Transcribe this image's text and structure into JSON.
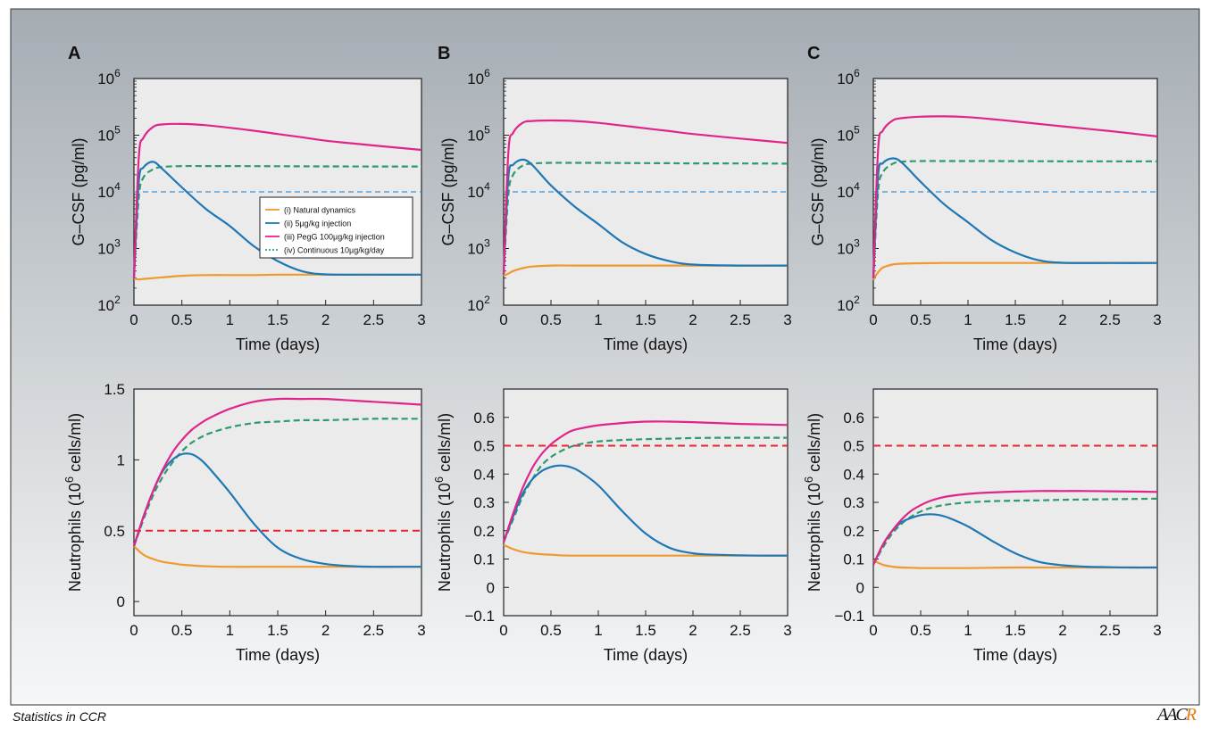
{
  "footer": {
    "journal": "Statistics in CCR",
    "logo": "AACR"
  },
  "legend": {
    "items": [
      {
        "label": "(i) Natural dynamics",
        "color": "#f0992e",
        "style": "solid"
      },
      {
        "label": "(ii) 5µg/kg injection",
        "color": "#1f78b4",
        "style": "solid"
      },
      {
        "label": "(iii) PegG 100µg/kg injection",
        "color": "#e0258a",
        "style": "solid"
      },
      {
        "label": "(iv) Continuous 10µg/kg/day",
        "color": "#2e9a6e",
        "style": "dashed"
      }
    ]
  },
  "colors": {
    "natural": "#f0992e",
    "injection": "#1f78b4",
    "pegg": "#e0258a",
    "continuous": "#2e9a6e",
    "thr_gcsf": "#3a8fd6",
    "thr_neut": "#e8262e"
  },
  "chart_data": [
    {
      "panel": "A",
      "type": "line",
      "xlabel": "Time (days)",
      "ylabel": "G–CSF (pg/ml)",
      "yscale": "log",
      "xlim": [
        0,
        3
      ],
      "ylim": [
        100,
        1000000
      ],
      "xticks": [
        "0",
        "0.5",
        "1",
        "1.5",
        "2",
        "2.5",
        "3"
      ],
      "yticks": [
        {
          "base": "10",
          "exp": "2"
        },
        {
          "base": "10",
          "exp": "3"
        },
        {
          "base": "10",
          "exp": "4"
        },
        {
          "base": "10",
          "exp": "5"
        },
        {
          "base": "10",
          "exp": "6"
        }
      ],
      "x": [
        0,
        0.05,
        0.1,
        0.2,
        0.3,
        0.5,
        0.75,
        1,
        1.25,
        1.5,
        1.75,
        2,
        2.5,
        3
      ],
      "series": [
        {
          "name": "(i) Natural dynamics",
          "key": "natural",
          "values": [
            290,
            285,
            290,
            300,
            310,
            330,
            340,
            340,
            340,
            345,
            345,
            345,
            345,
            345
          ]
        },
        {
          "name": "(ii) 5µg/kg injection",
          "key": "injection",
          "values": [
            300,
            15000,
            27000,
            34000,
            25000,
            12000,
            5000,
            2500,
            1100,
            600,
            400,
            350,
            345,
            345
          ]
        },
        {
          "name": "(iii) PegG 100µg/kg injection",
          "key": "pegg",
          "values": [
            300,
            40000,
            90000,
            140000,
            155000,
            158000,
            150000,
            135000,
            120000,
            105000,
            92000,
            80000,
            66000,
            55000
          ]
        },
        {
          "name": "(iv) Continuous 10µg/kg/day",
          "key": "continuous",
          "values": [
            300,
            8000,
            18000,
            25000,
            27500,
            28500,
            28500,
            28500,
            28400,
            28300,
            28200,
            28100,
            28000,
            28000
          ]
        }
      ],
      "threshold": 10000
    },
    {
      "panel": "B",
      "type": "line",
      "xlabel": "Time (days)",
      "ylabel": "G–CSF (pg/ml)",
      "yscale": "log",
      "xlim": [
        0,
        3
      ],
      "ylim": [
        100,
        1000000
      ],
      "xticks": [
        "0",
        "0.5",
        "1",
        "1.5",
        "2",
        "2.5",
        "3"
      ],
      "yticks": [
        {
          "base": "10",
          "exp": "2"
        },
        {
          "base": "10",
          "exp": "3"
        },
        {
          "base": "10",
          "exp": "4"
        },
        {
          "base": "10",
          "exp": "5"
        },
        {
          "base": "10",
          "exp": "6"
        }
      ],
      "x": [
        0,
        0.05,
        0.1,
        0.2,
        0.3,
        0.5,
        0.75,
        1,
        1.25,
        1.5,
        1.75,
        2,
        2.5,
        3
      ],
      "series": [
        {
          "name": "(i) Natural dynamics",
          "key": "natural",
          "values": [
            330,
            360,
            400,
            450,
            480,
            500,
            500,
            500,
            500,
            500,
            500,
            500,
            500,
            500
          ]
        },
        {
          "name": "(ii) 5µg/kg injection",
          "key": "injection",
          "values": [
            350,
            18000,
            30000,
            37000,
            30000,
            13000,
            5500,
            2700,
            1300,
            800,
            600,
            520,
            500,
            500
          ]
        },
        {
          "name": "(iii) PegG 100µg/kg injection",
          "key": "pegg",
          "values": [
            350,
            50000,
            110000,
            165000,
            178000,
            182000,
            178000,
            165000,
            148000,
            132000,
            118000,
            105000,
            87000,
            73000
          ]
        },
        {
          "name": "(iv) Continuous 10µg/kg/day",
          "key": "continuous",
          "values": [
            350,
            9000,
            20000,
            29000,
            31500,
            32500,
            32500,
            32500,
            32300,
            32100,
            32000,
            31800,
            31700,
            31500
          ]
        }
      ],
      "threshold": 10000
    },
    {
      "panel": "C",
      "type": "line",
      "xlabel": "Time (days)",
      "ylabel": "G–CSF (pg/ml)",
      "yscale": "log",
      "xlim": [
        0,
        3
      ],
      "ylim": [
        100,
        1000000
      ],
      "xticks": [
        "0",
        "0.5",
        "1",
        "1.5",
        "2",
        "2.5",
        "3"
      ],
      "yticks": [
        {
          "base": "10",
          "exp": "2"
        },
        {
          "base": "10",
          "exp": "3"
        },
        {
          "base": "10",
          "exp": "4"
        },
        {
          "base": "10",
          "exp": "5"
        },
        {
          "base": "10",
          "exp": "6"
        }
      ],
      "x": [
        0,
        0.05,
        0.1,
        0.2,
        0.3,
        0.5,
        0.75,
        1,
        1.25,
        1.5,
        1.75,
        2,
        2.5,
        3
      ],
      "series": [
        {
          "name": "(i) Natural dynamics",
          "key": "natural",
          "values": [
            280,
            380,
            460,
            520,
            540,
            550,
            555,
            555,
            555,
            555,
            555,
            555,
            555,
            555
          ]
        },
        {
          "name": "(ii) 5µg/kg injection",
          "key": "injection",
          "values": [
            300,
            19000,
            32000,
            39000,
            33000,
            15000,
            6000,
            2900,
            1400,
            850,
            620,
            560,
            555,
            555
          ]
        },
        {
          "name": "(iii) PegG 100µg/kg injection",
          "key": "pegg",
          "values": [
            300,
            55000,
            120000,
            180000,
            200000,
            212000,
            215000,
            208000,
            192000,
            175000,
            158000,
            143000,
            118000,
            95000
          ]
        },
        {
          "name": "(iv) Continuous 10µg/kg/day",
          "key": "continuous",
          "values": [
            300,
            10000,
            22000,
            31000,
            34000,
            35000,
            35000,
            35000,
            35000,
            34800,
            34700,
            34600,
            34500,
            34500
          ]
        }
      ],
      "threshold": 10000
    },
    {
      "panel": "A",
      "type": "line",
      "xlabel": "Time (days)",
      "ylabel": "Neutrophils (10^6 cells/ml)",
      "ylabel_parts": {
        "pre": "Neutrophils (10",
        "sup": "6",
        "post": " cells/ml)"
      },
      "yscale": "linear",
      "xlim": [
        0,
        3
      ],
      "ylim": [
        -0.1,
        1.5
      ],
      "xticks": [
        "0",
        "0.5",
        "1",
        "1.5",
        "2",
        "2.5",
        "3"
      ],
      "yticks": [
        "0",
        "0.5",
        "1",
        "1.5"
      ],
      "x": [
        0,
        0.1,
        0.2,
        0.3,
        0.4,
        0.5,
        0.6,
        0.7,
        0.8,
        1,
        1.25,
        1.5,
        1.75,
        2,
        2.25,
        2.5,
        2.75,
        3
      ],
      "series": [
        {
          "name": "(i) Natural dynamics",
          "key": "natural",
          "values": [
            0.39,
            0.33,
            0.3,
            0.28,
            0.27,
            0.26,
            0.255,
            0.25,
            0.248,
            0.245,
            0.245,
            0.245,
            0.245,
            0.245,
            0.245,
            0.245,
            0.245,
            0.245
          ]
        },
        {
          "name": "(ii) 5µg/kg injection",
          "key": "injection",
          "values": [
            0.39,
            0.6,
            0.78,
            0.92,
            1.0,
            1.04,
            1.04,
            1.0,
            0.93,
            0.77,
            0.55,
            0.38,
            0.3,
            0.265,
            0.25,
            0.245,
            0.245,
            0.245
          ]
        },
        {
          "name": "(iii) PegG 100µg/kg injection",
          "key": "pegg",
          "values": [
            0.39,
            0.6,
            0.78,
            0.93,
            1.05,
            1.14,
            1.21,
            1.26,
            1.3,
            1.36,
            1.41,
            1.43,
            1.43,
            1.43,
            1.42,
            1.41,
            1.4,
            1.39
          ]
        },
        {
          "name": "(iv) Continuous 10µg/kg/day",
          "key": "continuous",
          "values": [
            0.39,
            0.58,
            0.75,
            0.88,
            0.98,
            1.06,
            1.12,
            1.16,
            1.19,
            1.23,
            1.26,
            1.27,
            1.28,
            1.28,
            1.285,
            1.29,
            1.29,
            1.29
          ]
        }
      ],
      "threshold": 0.5
    },
    {
      "panel": "B",
      "type": "line",
      "xlabel": "Time (days)",
      "ylabel": "Neutrophils (10^6 cells/ml)",
      "ylabel_parts": {
        "pre": "Neutrophils (10",
        "sup": "6",
        "post": " cells/ml)"
      },
      "yscale": "linear",
      "xlim": [
        0,
        3
      ],
      "ylim": [
        -0.1,
        0.7
      ],
      "xticks": [
        "0",
        "0.5",
        "1",
        "1.5",
        "2",
        "2.5",
        "3"
      ],
      "yticks": [
        "−0.1",
        "0",
        "0.1",
        "0.2",
        "0.3",
        "0.4",
        "0.5",
        "0.6"
      ],
      "x": [
        0,
        0.1,
        0.2,
        0.3,
        0.4,
        0.5,
        0.6,
        0.7,
        0.8,
        1,
        1.25,
        1.5,
        1.75,
        2,
        2.25,
        2.5,
        2.75,
        3
      ],
      "series": [
        {
          "name": "(i) Natural dynamics",
          "key": "natural",
          "values": [
            0.15,
            0.135,
            0.125,
            0.12,
            0.117,
            0.115,
            0.113,
            0.112,
            0.112,
            0.112,
            0.112,
            0.112,
            0.112,
            0.112,
            0.112,
            0.112,
            0.112,
            0.112
          ]
        },
        {
          "name": "(ii) 5µg/kg injection",
          "key": "injection",
          "values": [
            0.16,
            0.25,
            0.33,
            0.38,
            0.41,
            0.425,
            0.43,
            0.425,
            0.41,
            0.36,
            0.27,
            0.19,
            0.14,
            0.12,
            0.115,
            0.113,
            0.112,
            0.112
          ]
        },
        {
          "name": "(iii) PegG 100µg/kg injection",
          "key": "pegg",
          "values": [
            0.16,
            0.26,
            0.35,
            0.42,
            0.47,
            0.505,
            0.53,
            0.55,
            0.56,
            0.572,
            0.58,
            0.585,
            0.585,
            0.583,
            0.58,
            0.577,
            0.575,
            0.573
          ]
        },
        {
          "name": "(iv) Continuous 10µg/kg/day",
          "key": "continuous",
          "values": [
            0.16,
            0.24,
            0.32,
            0.38,
            0.43,
            0.46,
            0.48,
            0.495,
            0.505,
            0.515,
            0.52,
            0.523,
            0.525,
            0.527,
            0.528,
            0.528,
            0.528,
            0.528
          ]
        }
      ],
      "threshold": 0.5
    },
    {
      "panel": "C",
      "type": "line",
      "xlabel": "Time (days)",
      "ylabel": "Neutrophils (10^6 cells/ml)",
      "ylabel_parts": {
        "pre": "Neutrophils (10",
        "sup": "6",
        "post": " cells/ml)"
      },
      "yscale": "linear",
      "xlim": [
        0,
        3
      ],
      "ylim": [
        -0.1,
        0.7
      ],
      "xticks": [
        "0",
        "0.5",
        "1",
        "1.5",
        "2",
        "2.5",
        "3"
      ],
      "yticks": [
        "−0.1",
        "0",
        "0.1",
        "0.2",
        "0.3",
        "0.4",
        "0.5",
        "0.6"
      ],
      "x": [
        0,
        0.1,
        0.2,
        0.3,
        0.4,
        0.5,
        0.6,
        0.7,
        0.8,
        1,
        1.25,
        1.5,
        1.75,
        2,
        2.25,
        2.5,
        2.75,
        3
      ],
      "series": [
        {
          "name": "(i) Natural dynamics",
          "key": "natural",
          "values": [
            0.095,
            0.08,
            0.073,
            0.07,
            0.069,
            0.068,
            0.068,
            0.068,
            0.068,
            0.068,
            0.069,
            0.07,
            0.07,
            0.07,
            0.07,
            0.07,
            0.07,
            0.07
          ]
        },
        {
          "name": "(ii) 5µg/kg injection",
          "key": "injection",
          "values": [
            0.08,
            0.15,
            0.2,
            0.23,
            0.245,
            0.255,
            0.258,
            0.255,
            0.245,
            0.215,
            0.165,
            0.12,
            0.09,
            0.078,
            0.073,
            0.071,
            0.07,
            0.07
          ]
        },
        {
          "name": "(iii) PegG 100µg/kg injection",
          "key": "pegg",
          "values": [
            0.08,
            0.15,
            0.2,
            0.24,
            0.27,
            0.29,
            0.305,
            0.315,
            0.322,
            0.33,
            0.335,
            0.338,
            0.34,
            0.34,
            0.34,
            0.339,
            0.338,
            0.337
          ]
        },
        {
          "name": "(iv) Continuous 10µg/kg/day",
          "key": "continuous",
          "values": [
            0.08,
            0.14,
            0.19,
            0.225,
            0.25,
            0.268,
            0.28,
            0.288,
            0.293,
            0.3,
            0.304,
            0.306,
            0.307,
            0.309,
            0.31,
            0.311,
            0.312,
            0.313
          ]
        }
      ],
      "threshold": 0.5
    }
  ]
}
